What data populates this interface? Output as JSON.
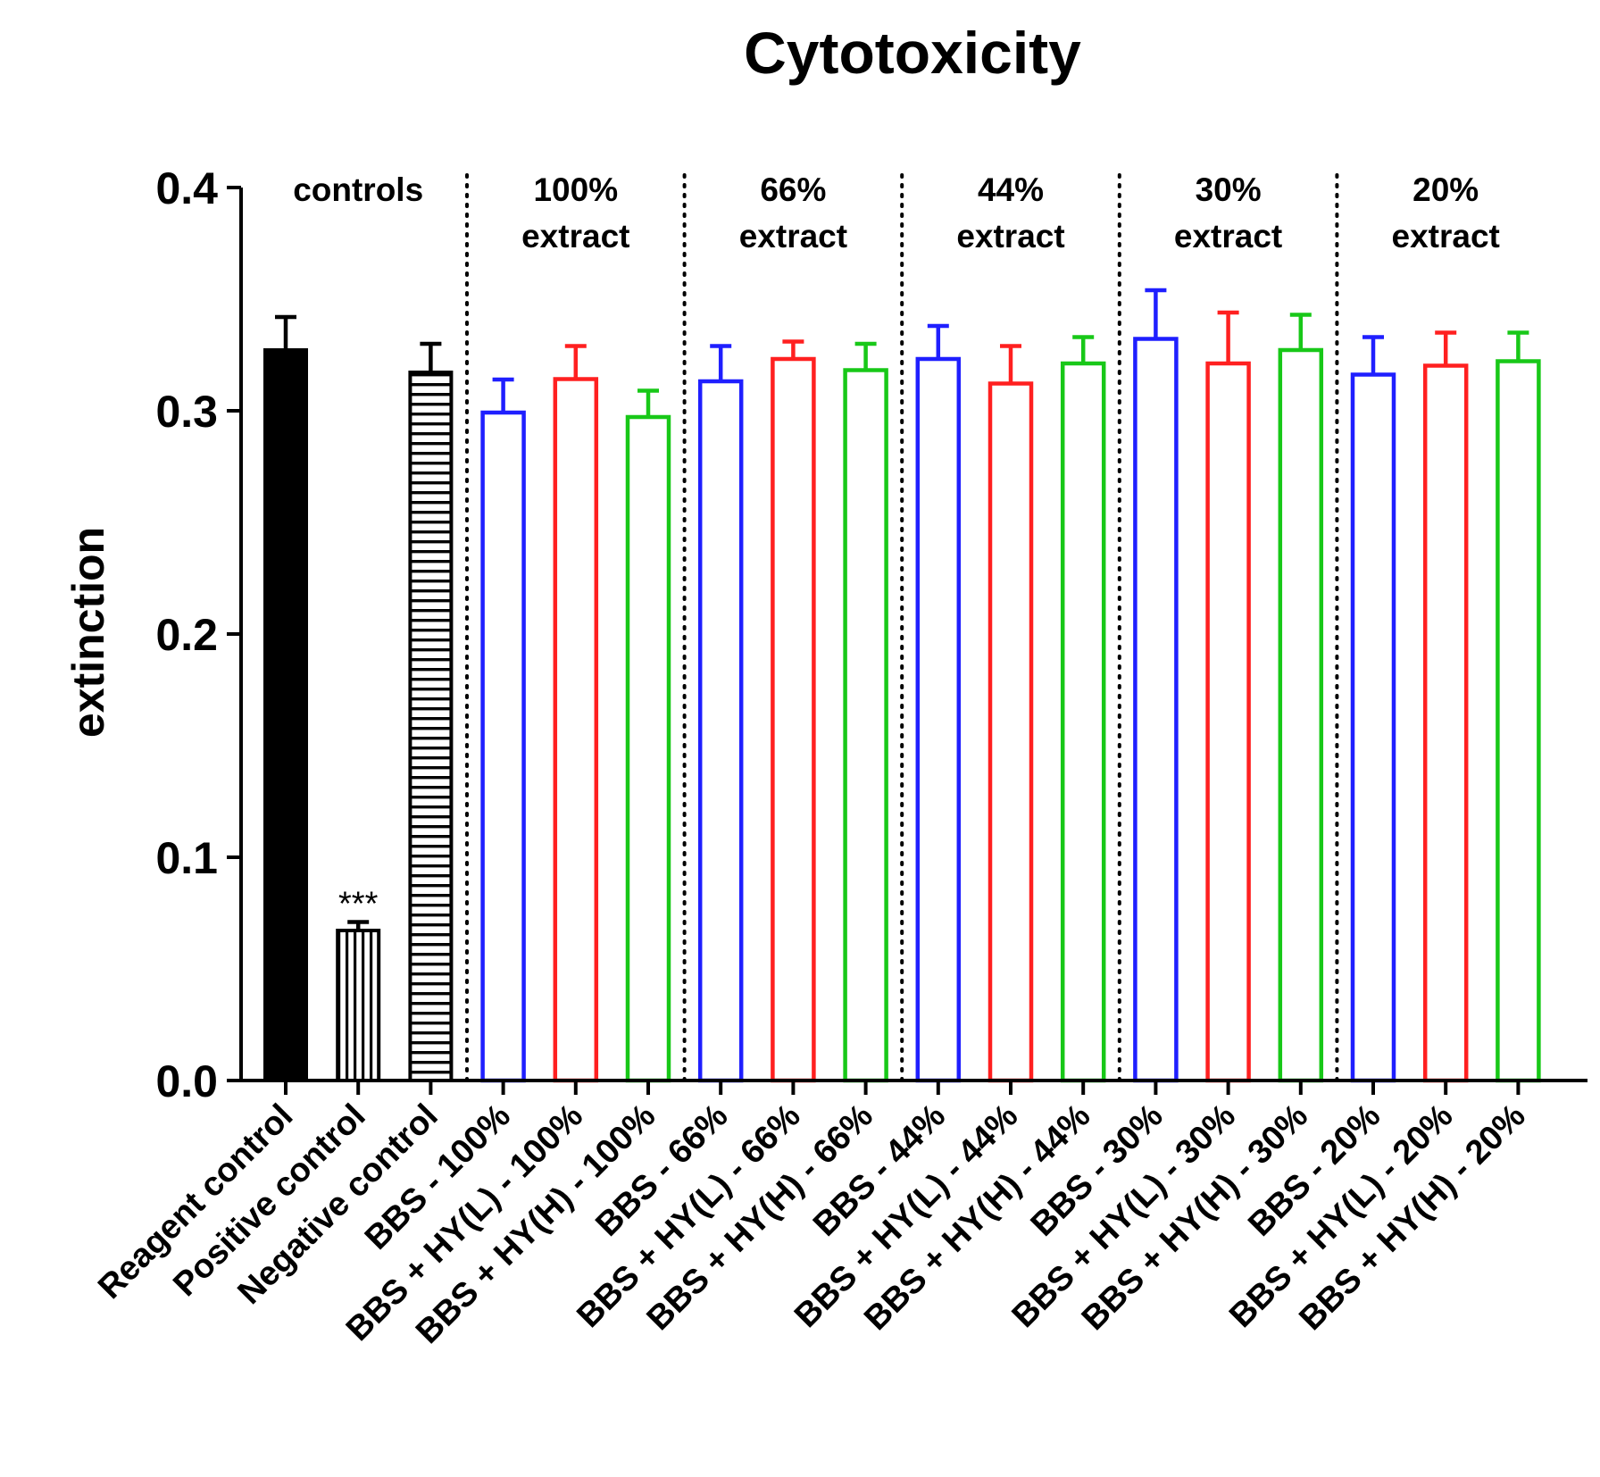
{
  "chart_data": {
    "type": "bar",
    "title": "Cytotoxicity",
    "xlabel": "",
    "ylabel": "extinction",
    "ylim": [
      0,
      0.4
    ],
    "yticks": [
      "0.0",
      "0.1",
      "0.2",
      "0.3",
      "0.4"
    ],
    "categories": [
      "Reagent control",
      "Positive control",
      "Negative control",
      "BBS - 100%",
      "BBS + HY(L) - 100%",
      "BBS + HY(H) - 100%",
      "BBS - 66%",
      "BBS + HY(L) - 66%",
      "BBS + HY(H) - 66%",
      "BBS - 44%",
      "BBS + HY(L) - 44%",
      "BBS + HY(H) - 44%",
      "BBS - 30%",
      "BBS + HY(L) - 30%",
      "BBS + HY(H) - 30%",
      "BBS - 20%",
      "BBS + HY(L) - 20%",
      "BBS + HY(H) - 20%"
    ],
    "values": [
      0.328,
      0.068,
      0.318,
      0.3,
      0.315,
      0.298,
      0.314,
      0.324,
      0.319,
      0.324,
      0.313,
      0.322,
      0.333,
      0.322,
      0.328,
      0.317,
      0.321,
      0.323
    ],
    "errors": [
      0.014,
      0.003,
      0.012,
      0.014,
      0.014,
      0.011,
      0.015,
      0.007,
      0.011,
      0.014,
      0.016,
      0.011,
      0.021,
      0.022,
      0.015,
      0.016,
      0.014,
      0.012
    ],
    "styles": [
      "solid",
      "vstripes",
      "hstripes",
      "blue",
      "red",
      "green",
      "blue",
      "red",
      "green",
      "blue",
      "red",
      "green",
      "blue",
      "red",
      "green",
      "blue",
      "red",
      "green"
    ],
    "colors": {
      "blue": "#1f1fff",
      "red": "#ff2020",
      "green": "#18c818",
      "black": "#000000"
    },
    "annotations": [
      {
        "category_index": 1,
        "text": "***"
      }
    ],
    "group_labels": [
      {
        "lines": [
          "controls"
        ],
        "start": 0,
        "end": 2
      },
      {
        "lines": [
          "100%",
          "extract"
        ],
        "start": 3,
        "end": 5
      },
      {
        "lines": [
          "66%",
          "extract"
        ],
        "start": 6,
        "end": 8
      },
      {
        "lines": [
          "44%",
          "extract"
        ],
        "start": 9,
        "end": 11
      },
      {
        "lines": [
          "30%",
          "extract"
        ],
        "start": 12,
        "end": 14
      },
      {
        "lines": [
          "20%",
          "extract"
        ],
        "start": 15,
        "end": 17
      }
    ],
    "group_separators_after": [
      2,
      5,
      8,
      11,
      14
    ],
    "grid": false,
    "legend": "none"
  }
}
